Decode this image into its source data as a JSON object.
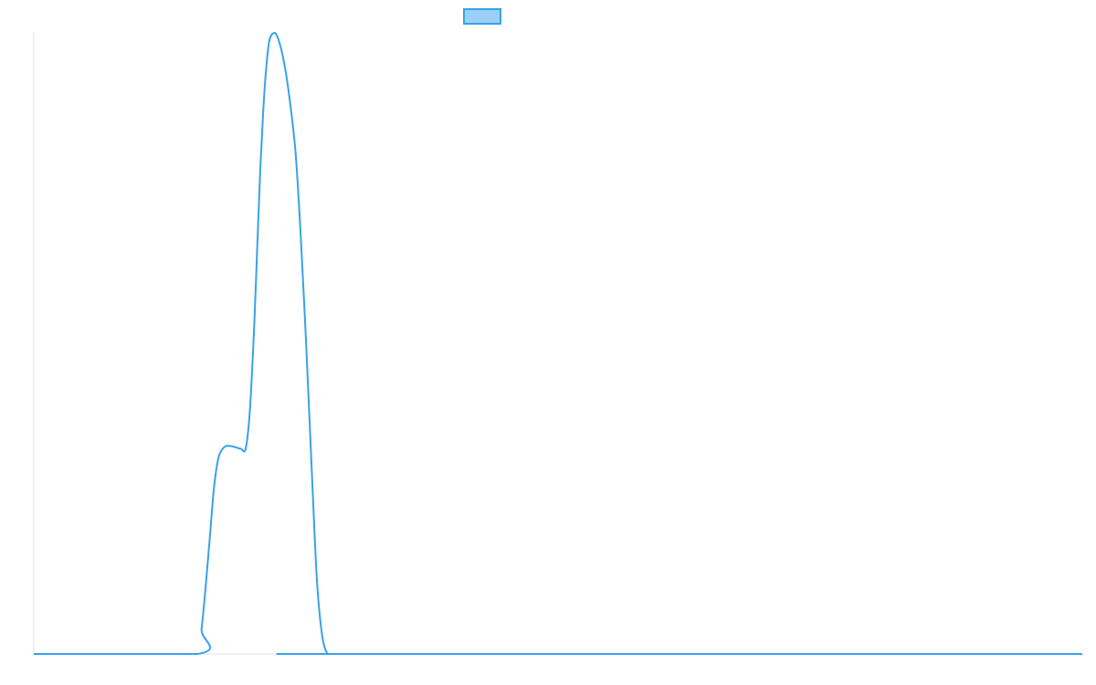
{
  "chart_data": {
    "type": "area",
    "x": [
      0,
      5,
      10,
      15,
      20,
      25,
      30,
      35,
      40,
      45,
      50,
      55,
      60,
      65,
      70,
      75,
      80,
      85,
      90,
      95,
      100
    ],
    "series": [
      {
        "name": "",
        "values": [
          0,
          0,
          0,
          0,
          0,
          0,
          0,
          0,
          0,
          0,
          0,
          0,
          0,
          0,
          0,
          0,
          0,
          0,
          0,
          0,
          0
        ]
      }
    ],
    "curve": {
      "x": [
        0,
        15.6,
        16.0,
        16.4,
        16.8,
        17.2,
        17.6,
        18.0,
        18.4,
        19.0,
        19.4,
        19.8,
        20.2,
        20.6,
        21.0,
        21.3,
        21.6,
        21.9,
        22.2,
        22.5,
        23.0,
        23.5,
        24.0,
        24.5,
        25.0,
        25.5,
        26.0,
        26.5,
        27.0,
        27.5,
        28.0,
        28.4,
        100
      ],
      "y": [
        0,
        0,
        4,
        11,
        19,
        27,
        31.5,
        33,
        33.5,
        33.4,
        33.2,
        33.0,
        33.0,
        39,
        52,
        65,
        78,
        88,
        95,
        99,
        100,
        98,
        94,
        88,
        80,
        66,
        49,
        30,
        12,
        3,
        0,
        0,
        0
      ]
    },
    "xlim": [
      0,
      100
    ],
    "ylim": [
      0,
      100
    ],
    "grid": false,
    "legend": "top-center",
    "title": "",
    "xlabel": "",
    "ylabel": "",
    "colors": {
      "line": "#36a2eb",
      "fill": "#9ad0f5",
      "axis": "#e6e6e6"
    }
  }
}
